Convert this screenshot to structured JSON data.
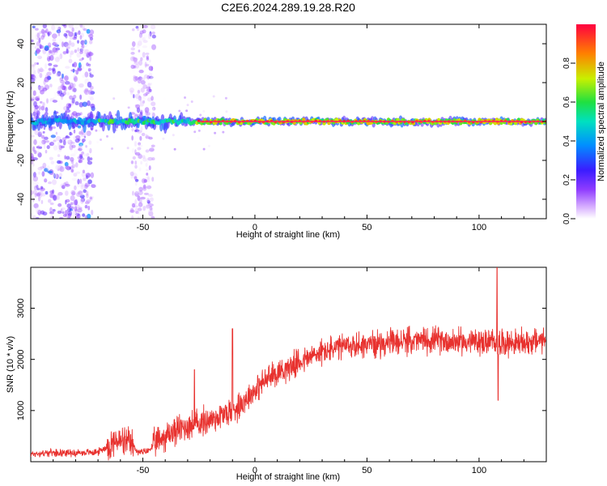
{
  "title": "C2E6.2024.289.19.28.R20",
  "colors": {
    "snr_line": "#e8322f",
    "axis": "#000000",
    "background": "#ffffff"
  },
  "chart_data": [
    {
      "type": "heatmap",
      "xlabel": "Height of straight line (km)",
      "ylabel": "Frequency (Hz)",
      "xlim": [
        -100,
        130
      ],
      "ylim": [
        -50,
        50
      ],
      "x_ticks": [
        -50,
        0,
        50,
        100
      ],
      "x_tick_labels": [
        "-50",
        "0",
        "50",
        "100"
      ],
      "y_ticks": [
        -40,
        -20,
        0,
        20,
        40
      ],
      "y_tick_labels": [
        "-40",
        "-20",
        "0",
        "20",
        "40"
      ],
      "colorbar": {
        "label": "Normalized spectral amplitude",
        "range": [
          0,
          1
        ],
        "ticks": [
          0.0,
          0.2,
          0.4,
          0.6,
          0.8
        ],
        "tick_labels": [
          "0.0",
          "0.2",
          "0.4",
          "0.6",
          "0.8"
        ],
        "colormap": [
          "#ffffff",
          "#b06cff",
          "#6a00d8",
          "#2a2cff",
          "#00c8ff",
          "#00e060",
          "#ffe000",
          "#ff2030"
        ]
      },
      "features": [
        {
          "name": "main ridge",
          "x_range": [
            -100,
            130
          ],
          "frequency": 0,
          "peak_amplitude": 0.95
        },
        {
          "name": "scatter band",
          "x_range": [
            -100,
            -72
          ],
          "frequency_range": [
            -50,
            50
          ],
          "amplitude": 0.3
        },
        {
          "name": "scatter band",
          "x_range": [
            -55,
            -45
          ],
          "frequency_range": [
            -50,
            50
          ],
          "amplitude": 0.2
        }
      ]
    },
    {
      "type": "line",
      "xlabel": "Height of straight line (km)",
      "ylabel": "SNR (10 * v/v)",
      "xlim": [
        -100,
        130
      ],
      "ylim": [
        0,
        3800
      ],
      "x_ticks": [
        -50,
        0,
        50,
        100
      ],
      "x_tick_labels": [
        "-50",
        "0",
        "50",
        "100"
      ],
      "y_ticks": [
        1000,
        2000,
        3000
      ],
      "y_tick_labels": [
        "1000",
        "2000",
        "3000"
      ],
      "series": [
        {
          "color": "#e8322f",
          "x": [
            -100,
            -90,
            -80,
            -70,
            -62,
            -55,
            -52,
            -48,
            -42,
            -36,
            -30,
            -25,
            -20,
            -15,
            -10,
            -5,
            0,
            5,
            10,
            15,
            20,
            25,
            30,
            40,
            50,
            60,
            70,
            80,
            90,
            100,
            110,
            120,
            130
          ],
          "values": [
            150,
            180,
            170,
            190,
            400,
            350,
            180,
            200,
            450,
            600,
            700,
            750,
            820,
            900,
            1000,
            1200,
            1400,
            1600,
            1750,
            1850,
            1950,
            2050,
            2150,
            2250,
            2300,
            2320,
            2360,
            2380,
            2350,
            2340,
            2330,
            2320,
            2400
          ],
          "spikes": [
            {
              "x": -10,
              "value": 2600
            },
            {
              "x": -27,
              "value": 1800
            },
            {
              "x": 108,
              "value": 3800
            },
            {
              "x": 108.5,
              "value": 1200
            }
          ]
        }
      ]
    }
  ]
}
